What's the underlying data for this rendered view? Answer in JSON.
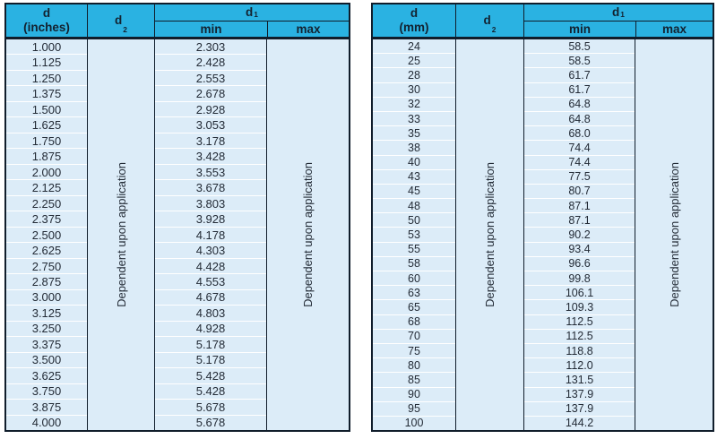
{
  "colors": {
    "header_bg": "#2ab2e2",
    "border_dark": "#101d2b",
    "row_bg": "#dcecf8",
    "row_line": "#ffffff",
    "cell_text": "#232b36",
    "header_text": "#132230",
    "page_bg": "#ffffff"
  },
  "tables": [
    {
      "name": "inches",
      "header": {
        "d_line1": "d",
        "d_line2": "(inches)",
        "d2_base": "d",
        "d2_sub": "2",
        "d1_base": "d",
        "d1_sub": "1",
        "min": "min",
        "max": "max"
      },
      "d2_note": "Dependent upon application",
      "max_note": "Dependent upon application",
      "rows": [
        {
          "d": "1.000",
          "min": "2.303"
        },
        {
          "d": "1.125",
          "min": "2.428"
        },
        {
          "d": "1.250",
          "min": "2.553"
        },
        {
          "d": "1.375",
          "min": "2.678"
        },
        {
          "d": "1.500",
          "min": "2.928"
        },
        {
          "d": "1.625",
          "min": "3.053"
        },
        {
          "d": "1.750",
          "min": "3.178"
        },
        {
          "d": "1.875",
          "min": "3.428"
        },
        {
          "d": "2.000",
          "min": "3.553"
        },
        {
          "d": "2.125",
          "min": "3.678"
        },
        {
          "d": "2.250",
          "min": "3.803"
        },
        {
          "d": "2.375",
          "min": "3.928"
        },
        {
          "d": "2.500",
          "min": "4.178"
        },
        {
          "d": "2.625",
          "min": "4.303"
        },
        {
          "d": "2.750",
          "min": "4.428"
        },
        {
          "d": "2.875",
          "min": "4.553"
        },
        {
          "d": "3.000",
          "min": "4.678"
        },
        {
          "d": "3.125",
          "min": "4.803"
        },
        {
          "d": "3.250",
          "min": "4.928"
        },
        {
          "d": "3.375",
          "min": "5.178"
        },
        {
          "d": "3.500",
          "min": "5.178"
        },
        {
          "d": "3.625",
          "min": "5.428"
        },
        {
          "d": "3.750",
          "min": "5.428"
        },
        {
          "d": "3.875",
          "min": "5.678"
        },
        {
          "d": "4.000",
          "min": "5.678"
        }
      ]
    },
    {
      "name": "mm",
      "header": {
        "d_line1": "d",
        "d_line2": "(mm)",
        "d2_base": "d",
        "d2_sub": "2",
        "d1_base": "d",
        "d1_sub": "1",
        "min": "min",
        "max": "max"
      },
      "d2_note": "Dependent upon application",
      "max_note": "Dependent upon application",
      "rows": [
        {
          "d": "24",
          "min": "58.5"
        },
        {
          "d": "25",
          "min": "58.5"
        },
        {
          "d": "28",
          "min": "61.7"
        },
        {
          "d": "30",
          "min": "61.7"
        },
        {
          "d": "32",
          "min": "64.8"
        },
        {
          "d": "33",
          "min": "64.8"
        },
        {
          "d": "35",
          "min": "68.0"
        },
        {
          "d": "38",
          "min": "74.4"
        },
        {
          "d": "40",
          "min": "74.4"
        },
        {
          "d": "43",
          "min": "77.5"
        },
        {
          "d": "45",
          "min": "80.7"
        },
        {
          "d": "48",
          "min": "87.1"
        },
        {
          "d": "50",
          "min": "87.1"
        },
        {
          "d": "53",
          "min": "90.2"
        },
        {
          "d": "55",
          "min": "93.4"
        },
        {
          "d": "58",
          "min": "96.6"
        },
        {
          "d": "60",
          "min": "99.8"
        },
        {
          "d": "63",
          "min": "106.1"
        },
        {
          "d": "65",
          "min": "109.3"
        },
        {
          "d": "68",
          "min": "112.5"
        },
        {
          "d": "70",
          "min": "112.5"
        },
        {
          "d": "75",
          "min": "118.8"
        },
        {
          "d": "80",
          "min": "112.0"
        },
        {
          "d": "85",
          "min": "131.5"
        },
        {
          "d": "90",
          "min": "137.9"
        },
        {
          "d": "95",
          "min": "137.9"
        },
        {
          "d": "100",
          "min": "144.2"
        }
      ]
    }
  ]
}
